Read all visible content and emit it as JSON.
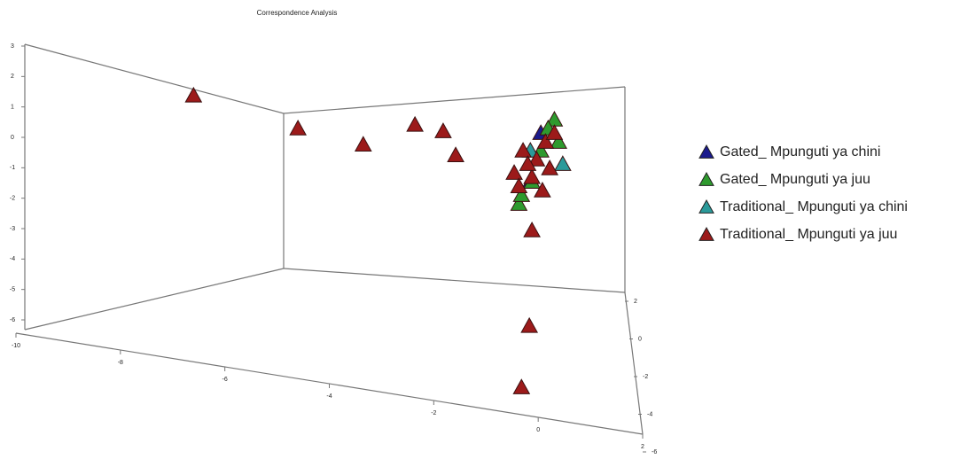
{
  "chart_data": {
    "type": "scatter",
    "title": "Correspondence Analysis",
    "xlim": [
      -10,
      2
    ],
    "ylim": [
      -9,
      3
    ],
    "xticks": [
      -10,
      -8,
      -6,
      -4,
      -2,
      0,
      2
    ],
    "yticks": [
      3,
      2,
      1,
      0,
      -1,
      -2,
      -3,
      -4,
      -5,
      -6
    ],
    "zticks": [
      2,
      0,
      -2,
      -4,
      -6
    ],
    "series": [
      {
        "name": "Gated_ Mpunguti ya chini",
        "color": "#1a1a8c",
        "x": [
          -0.15,
          0.05
        ],
        "y": [
          -1.46,
          0.14
        ]
      },
      {
        "name": "Gated_ Mpunguti ya juu",
        "color": "#2e9a2e",
        "x": [
          0.31,
          -0.37,
          -0.32,
          0.05,
          0.39,
          -0.12,
          0.19
        ],
        "y": [
          0.58,
          -2.19,
          -1.9,
          -0.44,
          -0.15,
          -1.46,
          0.29
        ]
      },
      {
        "name": "Traditional_ Mpunguti ya chini",
        "color": "#2a9a9a",
        "x": [
          0.47,
          -0.15
        ],
        "y": [
          -0.88,
          -0.44
        ]
      },
      {
        "name": "Traditional_ Mpunguti ya juu",
        "color": "#9c1a1a",
        "x": [
          -6.6,
          -4.6,
          -3.35,
          -2.36,
          -1.82,
          -1.58,
          -0.17,
          -0.32,
          -0.12,
          -0.46,
          -0.29,
          -0.03,
          0.14,
          0.31,
          0.08,
          -0.37,
          -0.12,
          0.22,
          -0.2
        ],
        "y": [
          1.37,
          0.29,
          -0.24,
          0.41,
          0.2,
          -0.59,
          -6.2,
          -8.22,
          -3.06,
          -1.17,
          -0.44,
          -0.73,
          -0.15,
          0.14,
          -1.75,
          -1.61,
          -1.31,
          -1.02,
          -0.88
        ]
      }
    ]
  }
}
